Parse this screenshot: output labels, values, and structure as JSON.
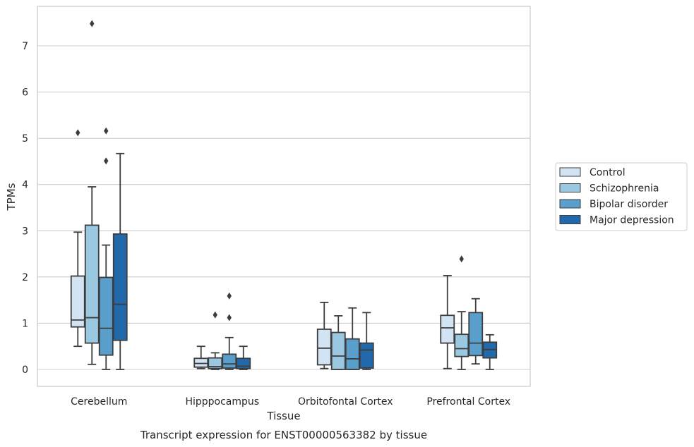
{
  "chart_data": {
    "type": "box",
    "xlabel": "Tissue",
    "ylabel": "TPMs",
    "caption": "Transcript expression for ENST00000563382 by tissue",
    "ylim": [
      -0.35,
      7.85
    ],
    "yticks": [
      0,
      1,
      2,
      3,
      4,
      5,
      6,
      7
    ],
    "grid": "horizontal",
    "legend_position": "right",
    "categories": [
      "Cerebellum",
      "Hipppocampus",
      "Orbitofontal Cortex",
      "Prefrontal Cortex"
    ],
    "series": [
      {
        "name": "Control",
        "color": "#d2e3f3",
        "boxes": [
          {
            "whislo": 0.5,
            "q1": 0.92,
            "med": 1.07,
            "q3": 2.02,
            "whishi": 2.97,
            "fliers": [
              5.12
            ]
          },
          {
            "whislo": 0.02,
            "q1": 0.05,
            "med": 0.13,
            "q3": 0.24,
            "whishi": 0.5,
            "fliers": []
          },
          {
            "whislo": 0.02,
            "q1": 0.1,
            "med": 0.46,
            "q3": 0.87,
            "whishi": 1.45,
            "fliers": []
          },
          {
            "whislo": 0.02,
            "q1": 0.57,
            "med": 0.9,
            "q3": 1.17,
            "whishi": 2.03,
            "fliers": []
          }
        ]
      },
      {
        "name": "Schizophrenia",
        "color": "#9ac8e0",
        "boxes": [
          {
            "whislo": 0.11,
            "q1": 0.57,
            "med": 1.12,
            "q3": 3.12,
            "whishi": 3.95,
            "fliers": [
              7.48
            ]
          },
          {
            "whislo": 0.0,
            "q1": 0.02,
            "med": 0.06,
            "q3": 0.25,
            "whishi": 0.36,
            "fliers": [
              1.18
            ]
          },
          {
            "whislo": 0.0,
            "q1": 0.0,
            "med": 0.29,
            "q3": 0.8,
            "whishi": 1.16,
            "fliers": []
          },
          {
            "whislo": 0.0,
            "q1": 0.28,
            "med": 0.45,
            "q3": 0.76,
            "whishi": 1.25,
            "fliers": [
              2.39
            ]
          }
        ]
      },
      {
        "name": "Bipolar disorder",
        "color": "#5a9fcc",
        "boxes": [
          {
            "whislo": 0.0,
            "q1": 0.31,
            "med": 0.89,
            "q3": 1.99,
            "whishi": 2.69,
            "fliers": [
              4.51,
              5.16
            ]
          },
          {
            "whislo": 0.0,
            "q1": 0.03,
            "med": 0.12,
            "q3": 0.33,
            "whishi": 0.69,
            "fliers": [
              1.12,
              1.59
            ]
          },
          {
            "whislo": 0.0,
            "q1": 0.0,
            "med": 0.23,
            "q3": 0.66,
            "whishi": 1.33,
            "fliers": []
          },
          {
            "whislo": 0.12,
            "q1": 0.3,
            "med": 0.57,
            "q3": 1.23,
            "whishi": 1.53,
            "fliers": []
          }
        ]
      },
      {
        "name": "Major depression",
        "color": "#2269ac",
        "boxes": [
          {
            "whislo": 0.0,
            "q1": 0.63,
            "med": 1.41,
            "q3": 2.93,
            "whishi": 4.67,
            "fliers": []
          },
          {
            "whislo": 0.0,
            "q1": 0.02,
            "med": 0.07,
            "q3": 0.24,
            "whishi": 0.5,
            "fliers": []
          },
          {
            "whislo": 0.0,
            "q1": 0.03,
            "med": 0.42,
            "q3": 0.57,
            "whishi": 1.23,
            "fliers": []
          },
          {
            "whislo": 0.0,
            "q1": 0.25,
            "med": 0.43,
            "q3": 0.59,
            "whishi": 0.75,
            "fliers": []
          }
        ]
      }
    ]
  }
}
